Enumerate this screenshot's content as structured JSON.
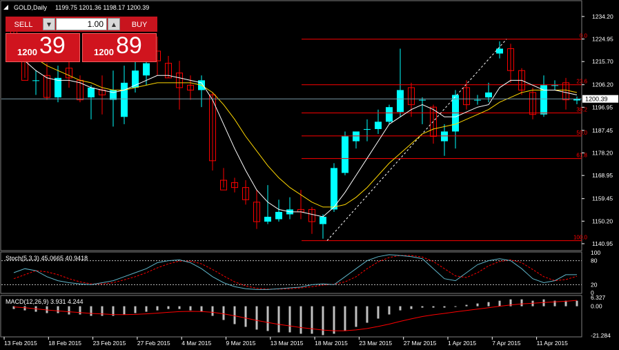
{
  "header": {
    "symbol": "GOLD,Daily",
    "ohlc": "1199.75 1201.36 1198.17 1200.39"
  },
  "trade_panel": {
    "sell_label": "SELL",
    "buy_label": "BUY",
    "lot": "1.00",
    "sell_price_small": "1200",
    "sell_price_big": "39",
    "buy_price_small": "1200",
    "buy_price_big": "89"
  },
  "colors": {
    "background": "#000000",
    "bull": "#00ffff",
    "bear": "#ff0000",
    "grid": "#3a3a3a",
    "fib": "#ff0000",
    "ma_fast": "#ffffff",
    "ma_slow": "#ffd700",
    "stoch_main": "#5fb5c9",
    "stoch_signal": "#ff0000",
    "macd_hist": "#c0c0c0",
    "macd_signal": "#ff0000",
    "trade_panel": "#c8141e"
  },
  "chart_data": [
    {
      "type": "candlestick",
      "title": "GOLD,Daily",
      "current_price": "1200.39",
      "ylim": [
        1138.4,
        1240.4
      ],
      "y_ticks": [
        "1234.20",
        "1224.95",
        "1215.70",
        "1206.20",
        "1196.95",
        "1187.45",
        "1178.20",
        "1168.95",
        "1159.45",
        "1150.20",
        "1140.95"
      ],
      "x_ticks": [
        "13 Feb 2015",
        "18 Feb 2015",
        "23 Feb 2015",
        "27 Feb 2015",
        "4 Mar 2015",
        "9 Mar 2015",
        "13 Mar 2015",
        "18 Mar 2015",
        "23 Mar 2015",
        "27 Mar 2015",
        "1 Apr 2015",
        "7 Apr 2015",
        "11 Apr 2015"
      ],
      "candles": [
        {
          "o": 1230,
          "h": 1234,
          "l": 1221,
          "c": 1225
        },
        {
          "o": 1218,
          "h": 1224,
          "l": 1209,
          "c": 1208
        },
        {
          "o": 1208,
          "h": 1212,
          "l": 1202,
          "c": 1208
        },
        {
          "o": 1210,
          "h": 1215,
          "l": 1200,
          "c": 1201
        },
        {
          "o": 1201,
          "h": 1214,
          "l": 1199,
          "c": 1209
        },
        {
          "o": 1213,
          "h": 1218,
          "l": 1205,
          "c": 1209
        },
        {
          "o": 1208,
          "h": 1210,
          "l": 1199,
          "c": 1200
        },
        {
          "o": 1201,
          "h": 1206,
          "l": 1192,
          "c": 1205
        },
        {
          "o": 1204,
          "h": 1210,
          "l": 1194,
          "c": 1202
        },
        {
          "o": 1200,
          "h": 1212,
          "l": 1189,
          "c": 1204
        },
        {
          "o": 1193,
          "h": 1214,
          "l": 1190,
          "c": 1207
        },
        {
          "o": 1205,
          "h": 1222,
          "l": 1203,
          "c": 1212
        },
        {
          "o": 1210,
          "h": 1218,
          "l": 1206,
          "c": 1215
        },
        {
          "o": 1220,
          "h": 1226,
          "l": 1210,
          "c": 1216
        },
        {
          "o": 1215,
          "h": 1218,
          "l": 1209,
          "c": 1209
        },
        {
          "o": 1211,
          "h": 1216,
          "l": 1196,
          "c": 1205
        },
        {
          "o": 1206,
          "h": 1210,
          "l": 1200,
          "c": 1204
        },
        {
          "o": 1204,
          "h": 1210,
          "l": 1197,
          "c": 1208
        },
        {
          "o": 1202,
          "h": 1203,
          "l": 1171,
          "c": 1175
        },
        {
          "o": 1167,
          "h": 1172,
          "l": 1164,
          "c": 1163
        },
        {
          "o": 1166,
          "h": 1168,
          "l": 1162,
          "c": 1164
        },
        {
          "o": 1164,
          "h": 1167,
          "l": 1157,
          "c": 1159
        },
        {
          "o": 1158,
          "h": 1163,
          "l": 1147,
          "c": 1150
        },
        {
          "o": 1150,
          "h": 1165,
          "l": 1149,
          "c": 1152
        },
        {
          "o": 1151,
          "h": 1159,
          "l": 1150,
          "c": 1154
        },
        {
          "o": 1153,
          "h": 1160,
          "l": 1151,
          "c": 1155
        },
        {
          "o": 1155,
          "h": 1163,
          "l": 1151,
          "c": 1154
        },
        {
          "o": 1155,
          "h": 1156,
          "l": 1145,
          "c": 1150
        },
        {
          "o": 1149,
          "h": 1153,
          "l": 1143,
          "c": 1152
        },
        {
          "o": 1155,
          "h": 1174,
          "l": 1154,
          "c": 1172
        },
        {
          "o": 1170,
          "h": 1187,
          "l": 1169,
          "c": 1185
        },
        {
          "o": 1183,
          "h": 1187,
          "l": 1180,
          "c": 1187
        },
        {
          "o": 1188,
          "h": 1192,
          "l": 1183,
          "c": 1188
        },
        {
          "o": 1188,
          "h": 1196,
          "l": 1186,
          "c": 1191
        },
        {
          "o": 1191,
          "h": 1198,
          "l": 1190,
          "c": 1197
        },
        {
          "o": 1195,
          "h": 1221,
          "l": 1193,
          "c": 1204
        },
        {
          "o": 1205,
          "h": 1207,
          "l": 1193,
          "c": 1198
        },
        {
          "o": 1200,
          "h": 1201,
          "l": 1190,
          "c": 1200
        },
        {
          "o": 1197,
          "h": 1198,
          "l": 1182,
          "c": 1185
        },
        {
          "o": 1183,
          "h": 1190,
          "l": 1177,
          "c": 1187
        },
        {
          "o": 1187,
          "h": 1204,
          "l": 1180,
          "c": 1202
        },
        {
          "o": 1205,
          "h": 1208,
          "l": 1196,
          "c": 1198
        },
        {
          "o": 1200,
          "h": 1202,
          "l": 1198,
          "c": 1200
        },
        {
          "o": 1201,
          "h": 1207,
          "l": 1199,
          "c": 1203
        },
        {
          "o": 1219,
          "h": 1224,
          "l": 1217,
          "c": 1221
        },
        {
          "o": 1221,
          "h": 1223,
          "l": 1207,
          "c": 1212
        },
        {
          "o": 1212,
          "h": 1213,
          "l": 1202,
          "c": 1204
        },
        {
          "o": 1203,
          "h": 1205,
          "l": 1192,
          "c": 1194
        },
        {
          "o": 1194,
          "h": 1210,
          "l": 1193,
          "c": 1206
        },
        {
          "o": 1206,
          "h": 1208,
          "l": 1204,
          "c": 1206
        },
        {
          "o": 1207,
          "h": 1209,
          "l": 1196,
          "c": 1200
        },
        {
          "o": 1199.75,
          "h": 1201.36,
          "l": 1198.17,
          "c": 1200.39
        }
      ],
      "fib_levels": [
        {
          "label": "0.0",
          "price": 1224.9
        },
        {
          "label": "23.6",
          "price": 1206.2
        },
        {
          "label": "38.2",
          "price": 1194.6
        },
        {
          "label": "50.0",
          "price": 1185.2
        },
        {
          "label": "61.8",
          "price": 1175.9
        },
        {
          "label": "100.0",
          "price": 1142.2
        }
      ],
      "trendline": {
        "from_index": 29,
        "from_price": 1142.2,
        "to_index": 45,
        "to_price": 1224.9
      },
      "ma_fast": [
        1222,
        1216,
        1212,
        1209,
        1208,
        1208,
        1207,
        1205,
        1204,
        1203,
        1204,
        1206,
        1208,
        1210,
        1210,
        1209,
        1208,
        1207,
        1200,
        1190,
        1180,
        1171,
        1163,
        1158,
        1155,
        1154,
        1154,
        1153,
        1152,
        1156,
        1162,
        1169,
        1176,
        1183,
        1190,
        1193,
        1196,
        1198,
        1196,
        1193,
        1193,
        1195,
        1197,
        1198,
        1205,
        1208,
        1208,
        1206,
        1204,
        1204,
        1203,
        1202
      ],
      "ma_slow": [
        1225,
        1221,
        1217,
        1214,
        1212,
        1210,
        1208,
        1207,
        1205,
        1204,
        1204,
        1205,
        1206,
        1207,
        1207,
        1207,
        1207,
        1206,
        1203,
        1198,
        1192,
        1185,
        1179,
        1173,
        1168,
        1164,
        1161,
        1158,
        1156,
        1156,
        1157,
        1160,
        1164,
        1169,
        1174,
        1178,
        1182,
        1186,
        1188,
        1189,
        1190,
        1192,
        1194,
        1196,
        1199,
        1201,
        1203,
        1204,
        1204,
        1204,
        1204,
        1203
      ]
    },
    {
      "type": "line",
      "title": "Stoch(5,3,3) 45.0665 40.9418",
      "ylim": [
        0,
        100
      ],
      "y_ticks": [
        "100",
        "80",
        "20",
        "0"
      ],
      "series": [
        {
          "name": "Main",
          "values": [
            50,
            60,
            55,
            40,
            30,
            25,
            22,
            20,
            25,
            30,
            40,
            50,
            60,
            75,
            80,
            82,
            75,
            60,
            40,
            25,
            15,
            10,
            8,
            8,
            10,
            12,
            14,
            20,
            22,
            20,
            40,
            60,
            80,
            90,
            95,
            93,
            90,
            85,
            60,
            35,
            30,
            50,
            70,
            80,
            85,
            80,
            60,
            35,
            25,
            30,
            45,
            45
          ]
        },
        {
          "name": "Signal",
          "values": [
            35,
            45,
            55,
            52,
            45,
            35,
            27,
            22,
            22,
            25,
            32,
            40,
            50,
            62,
            72,
            79,
            79,
            72,
            58,
            42,
            27,
            17,
            11,
            9,
            9,
            10,
            12,
            15,
            19,
            21,
            27,
            40,
            60,
            77,
            88,
            93,
            93,
            89,
            78,
            60,
            42,
            38,
            50,
            67,
            78,
            82,
            75,
            58,
            40,
            30,
            33,
            41
          ]
        }
      ]
    },
    {
      "type": "bar",
      "title": "MACD(12,26,9) 3.931 4.244",
      "ylim": [
        -21.284,
        6.327
      ],
      "y_ticks": [
        "6.327",
        "0.00",
        "-21.284"
      ],
      "series": [
        {
          "name": "MACD",
          "values": [
            -2,
            -3,
            -4,
            -5,
            -5,
            -6,
            -6,
            -7,
            -7,
            -7,
            -6,
            -5,
            -4,
            -3,
            -2,
            -2,
            -3,
            -4,
            -7,
            -10,
            -13,
            -15,
            -17,
            -18,
            -19,
            -19,
            -20,
            -20,
            -21,
            -20,
            -18,
            -15,
            -12,
            -9,
            -6,
            -3,
            -2,
            -1,
            -1,
            -1,
            0,
            1,
            2,
            3,
            4,
            5,
            5,
            4,
            5,
            4,
            4,
            4
          ]
        },
        {
          "name": "Signal",
          "values": [
            -0.5,
            -1.1,
            -1.9,
            -2.7,
            -3.4,
            -4,
            -4.6,
            -5.2,
            -5.6,
            -6,
            -6.1,
            -5.9,
            -5.5,
            -5,
            -4.4,
            -3.9,
            -3.7,
            -3.8,
            -4.4,
            -5.5,
            -7,
            -8.6,
            -10.3,
            -11.8,
            -13.2,
            -14.3,
            -15.5,
            -16.4,
            -17.3,
            -17.8,
            -17.8,
            -17.2,
            -16.2,
            -14.7,
            -13,
            -11,
            -9.2,
            -7.5,
            -6.2,
            -5.2,
            -4.1,
            -3.1,
            -2.1,
            -1.1,
            0,
            0.9,
            1.7,
            2.2,
            2.7,
            3.2,
            3.6,
            4.244
          ]
        }
      ]
    }
  ]
}
